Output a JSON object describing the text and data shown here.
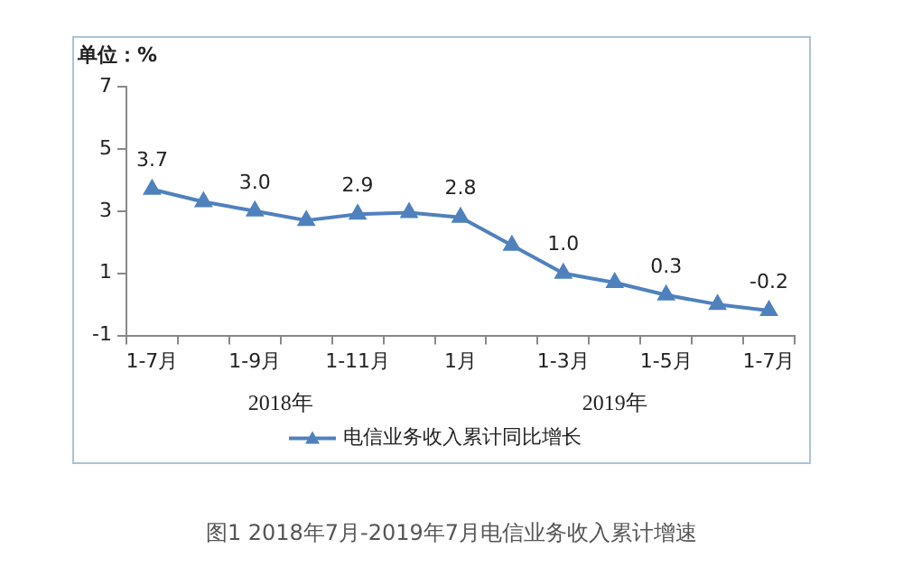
{
  "chart_data": {
    "type": "line",
    "title": "图1 2018年7月-2019年7月电信业务收入累计增速",
    "ylabel": "单位：%",
    "categories": [
      "1-7月",
      null,
      "1-9月",
      null,
      "1-11月",
      null,
      "1月",
      null,
      "1-3月",
      null,
      "1-5月",
      null,
      "1-7月"
    ],
    "series": [
      {
        "name": "电信业务收入累计同比增长",
        "color": "#4f81bd",
        "values": [
          3.7,
          3.3,
          3.0,
          2.7,
          2.9,
          2.95,
          2.8,
          1.9,
          1.0,
          0.7,
          0.3,
          0.0,
          -0.2
        ],
        "value_labels": [
          "3.7",
          null,
          "3.0",
          null,
          "2.9",
          null,
          "2.8",
          null,
          "1.0",
          null,
          "0.3",
          null,
          "-0.2"
        ]
      }
    ],
    "annotations": [
      "2018年",
      "2019年"
    ],
    "ylim": [
      -1,
      7
    ],
    "yticks": [
      -1,
      1,
      3,
      5,
      7
    ],
    "grid": false,
    "legend": "bottom",
    "marker": "triangle",
    "line_style": "solid"
  }
}
